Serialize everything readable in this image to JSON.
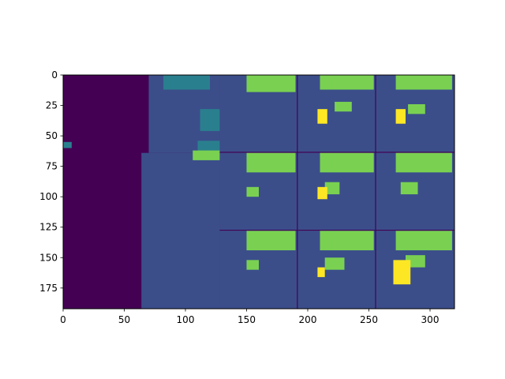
{
  "chart_data": {
    "type": "heatmap",
    "title": "",
    "xlabel": "",
    "ylabel": "",
    "xlim": [
      0,
      320
    ],
    "ylim": [
      192,
      0
    ],
    "grid": false,
    "legend": "none",
    "colormap": "viridis",
    "x_ticks": [
      {
        "value": 0,
        "label": "0"
      },
      {
        "value": 50,
        "label": "50"
      },
      {
        "value": 100,
        "label": "100"
      },
      {
        "value": 150,
        "label": "150"
      },
      {
        "value": 200,
        "label": "200"
      },
      {
        "value": 250,
        "label": "250"
      },
      {
        "value": 300,
        "label": "300"
      }
    ],
    "y_ticks": [
      {
        "value": 0,
        "label": "0"
      },
      {
        "value": 25,
        "label": "25"
      },
      {
        "value": 50,
        "label": "50"
      },
      {
        "value": 75,
        "label": "75"
      },
      {
        "value": 100,
        "label": "100"
      },
      {
        "value": 125,
        "label": "125"
      },
      {
        "value": 150,
        "label": "150"
      },
      {
        "value": 175,
        "label": "175"
      }
    ],
    "levels": [
      {
        "value": 0,
        "color": "#440154"
      },
      {
        "value": 1,
        "color": "#3b4e8a"
      },
      {
        "value": 2,
        "color": "#2a7f8e"
      },
      {
        "value": 3,
        "color": "#7ad151"
      },
      {
        "value": 4,
        "color": "#fde725"
      }
    ],
    "regions": [
      {
        "name": "background-left",
        "level": 0,
        "x0": 0,
        "y0": 0,
        "x1": 128,
        "y1": 192
      },
      {
        "name": "grid-background",
        "level": 1,
        "x0": 128,
        "y0": 0,
        "x1": 320,
        "y1": 192
      },
      {
        "name": "body-upper",
        "level": 1,
        "x0": 70,
        "y0": 0,
        "x1": 128,
        "y1": 64
      },
      {
        "name": "body-lower",
        "level": 1,
        "x0": 64,
        "y0": 64,
        "x1": 128,
        "y1": 192
      },
      {
        "name": "teal-top",
        "level": 2,
        "x0": 82,
        "y0": 0,
        "x1": 120,
        "y1": 12
      },
      {
        "name": "teal-right",
        "level": 2,
        "x0": 112,
        "y0": 28,
        "x1": 128,
        "y1": 46
      },
      {
        "name": "teal-lower",
        "level": 2,
        "x0": 110,
        "y0": 54,
        "x1": 128,
        "y1": 64
      },
      {
        "name": "teal-edge-left",
        "level": 2,
        "x0": 0,
        "y0": 55,
        "x1": 7,
        "y1": 60
      },
      {
        "name": "cell-1-1-green",
        "level": 3,
        "x0": 150,
        "y0": 0,
        "x1": 190,
        "y1": 14
      },
      {
        "name": "cell-1-2-green",
        "level": 3,
        "x0": 210,
        "y0": 0,
        "x1": 254,
        "y1": 12
      },
      {
        "name": "cell-1-2-green-b",
        "level": 3,
        "x0": 222,
        "y0": 22,
        "x1": 236,
        "y1": 30
      },
      {
        "name": "cell-1-3-green",
        "level": 3,
        "x0": 272,
        "y0": 0,
        "x1": 318,
        "y1": 12
      },
      {
        "name": "cell-1-3-green-b",
        "level": 3,
        "x0": 282,
        "y0": 24,
        "x1": 296,
        "y1": 32
      },
      {
        "name": "cell-1-2-yellow",
        "level": 4,
        "x0": 208,
        "y0": 28,
        "x1": 216,
        "y1": 40
      },
      {
        "name": "cell-1-3-yellow",
        "level": 4,
        "x0": 272,
        "y0": 28,
        "x1": 280,
        "y1": 40
      },
      {
        "name": "cell-0-1-green-strip",
        "level": 3,
        "x0": 106,
        "y0": 62,
        "x1": 128,
        "y1": 70
      },
      {
        "name": "cell-2-1-green",
        "level": 3,
        "x0": 150,
        "y0": 64,
        "x1": 190,
        "y1": 80
      },
      {
        "name": "cell-2-1-green-b",
        "level": 3,
        "x0": 150,
        "y0": 92,
        "x1": 160,
        "y1": 100
      },
      {
        "name": "cell-2-2-green",
        "level": 3,
        "x0": 210,
        "y0": 64,
        "x1": 254,
        "y1": 80
      },
      {
        "name": "cell-2-2-green-b",
        "level": 3,
        "x0": 214,
        "y0": 88,
        "x1": 226,
        "y1": 98
      },
      {
        "name": "cell-2-3-green",
        "level": 3,
        "x0": 272,
        "y0": 64,
        "x1": 318,
        "y1": 80
      },
      {
        "name": "cell-2-3-green-b",
        "level": 3,
        "x0": 276,
        "y0": 88,
        "x1": 290,
        "y1": 98
      },
      {
        "name": "cell-2-2-yellow",
        "level": 4,
        "x0": 208,
        "y0": 92,
        "x1": 216,
        "y1": 102
      },
      {
        "name": "cell-3-1-green",
        "level": 3,
        "x0": 150,
        "y0": 128,
        "x1": 190,
        "y1": 144
      },
      {
        "name": "cell-3-1-green-b",
        "level": 3,
        "x0": 150,
        "y0": 152,
        "x1": 160,
        "y1": 160
      },
      {
        "name": "cell-3-2-green",
        "level": 3,
        "x0": 210,
        "y0": 128,
        "x1": 254,
        "y1": 144
      },
      {
        "name": "cell-3-2-green-b",
        "level": 3,
        "x0": 214,
        "y0": 150,
        "x1": 230,
        "y1": 160
      },
      {
        "name": "cell-3-3-green",
        "level": 3,
        "x0": 272,
        "y0": 128,
        "x1": 318,
        "y1": 144
      },
      {
        "name": "cell-3-3-green-b",
        "level": 3,
        "x0": 280,
        "y0": 148,
        "x1": 296,
        "y1": 158
      },
      {
        "name": "cell-3-2-yellow",
        "level": 4,
        "x0": 208,
        "y0": 158,
        "x1": 214,
        "y1": 166
      },
      {
        "name": "cell-3-3-yellow",
        "level": 4,
        "x0": 270,
        "y0": 152,
        "x1": 284,
        "y1": 172
      }
    ],
    "dividers": [
      {
        "orient": "h",
        "at": 63.5,
        "from": 128,
        "to": 320
      },
      {
        "orient": "h",
        "at": 127.5,
        "from": 128,
        "to": 320
      },
      {
        "orient": "v",
        "at": 191.5,
        "from": 0,
        "to": 192
      },
      {
        "orient": "v",
        "at": 255.5,
        "from": 0,
        "to": 192
      }
    ]
  }
}
